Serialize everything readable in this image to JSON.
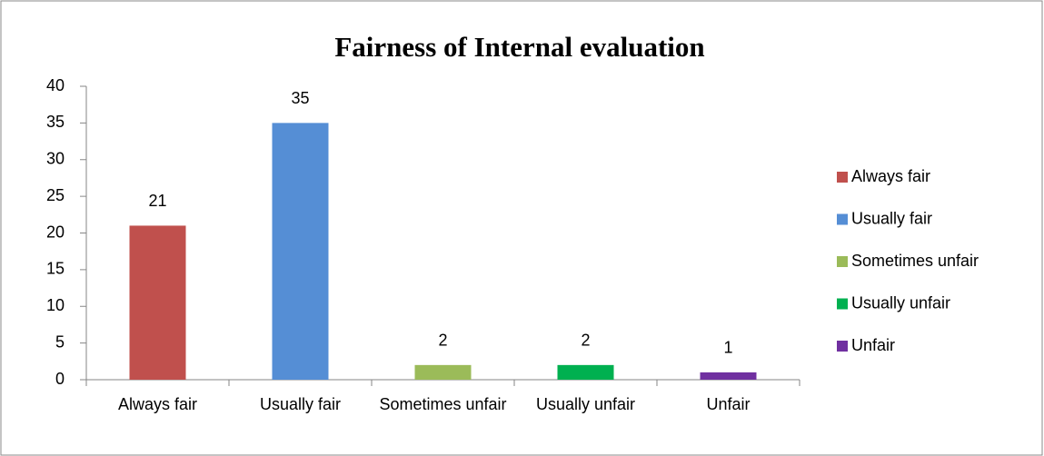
{
  "chart_data": {
    "type": "bar",
    "title": "Fairness of Internal evaluation",
    "categories": [
      "Always fair",
      "Usually fair",
      "Sometimes unfair",
      "Usually unfair",
      "Unfair"
    ],
    "values": [
      21,
      35,
      2,
      2,
      1
    ],
    "colors": [
      "#c0504d",
      "#558ed5",
      "#9bbb59",
      "#00b050",
      "#7030a0"
    ],
    "ylim": [
      0,
      40
    ],
    "yticks": [
      0,
      5,
      10,
      15,
      20,
      25,
      30,
      35,
      40
    ],
    "grid": false,
    "data_labels": true,
    "legend": "right"
  }
}
